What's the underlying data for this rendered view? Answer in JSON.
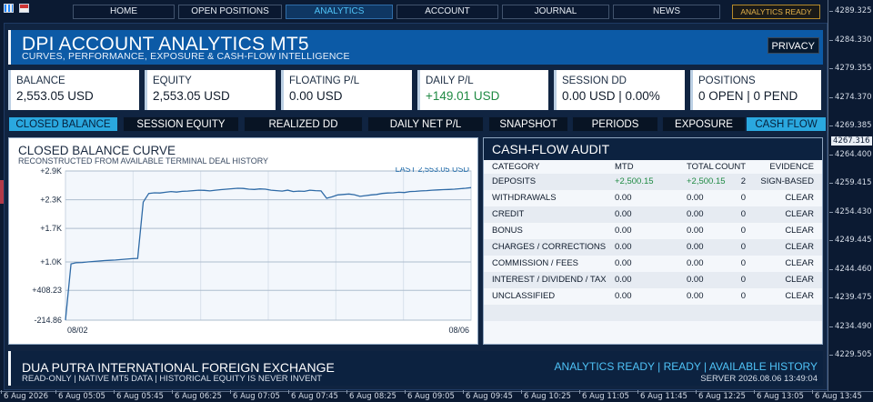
{
  "nav": {
    "items": [
      "HOME",
      "OPEN POSITIONS",
      "ANALYTICS",
      "ACCOUNT",
      "JOURNAL",
      "NEWS"
    ],
    "active": "ANALYTICS",
    "status": "ANALYTICS READY"
  },
  "header": {
    "title": "DPI ACCOUNT ANALYTICS MT5",
    "subtitle": "CURVES, PERFORMANCE, EXPOSURE & CASH-FLOW INTELLIGENCE",
    "privacy_label": "PRIVACY"
  },
  "cards": [
    {
      "label": "BALANCE",
      "value": "2,553.05 USD",
      "color": "#111c2b"
    },
    {
      "label": "EQUITY",
      "value": "2,553.05 USD",
      "color": "#111c2b"
    },
    {
      "label": "FLOATING P/L",
      "value": "0.00 USD",
      "color": "#111c2b"
    },
    {
      "label": "DAILY P/L",
      "value": "+149.01 USD",
      "color": "#1f8a43"
    },
    {
      "label": "SESSION DD",
      "value": "0.00 USD | 0.00%",
      "color": "#111c2b"
    },
    {
      "label": "POSITIONS",
      "value": "0 OPEN | 0 PEND",
      "color": "#111c2b"
    }
  ],
  "tabs": [
    "CLOSED BALANCE",
    "SESSION EQUITY",
    "REALIZED DD",
    "DAILY NET P/L",
    "SNAPSHOT",
    "PERIODS",
    "EXPOSURE",
    "CASH FLOW"
  ],
  "active_tabs": [
    "CLOSED BALANCE",
    "CASH FLOW"
  ],
  "chart_panel": {
    "title": "CLOSED BALANCE CURVE",
    "subtitle": "RECONSTRUCTED FROM AVAILABLE TERMINAL DEAL HISTORY",
    "last_label": "LAST 2,553.05 USD"
  },
  "chart_data": {
    "type": "line",
    "title": "CLOSED BALANCE CURVE",
    "y_tick_labels": [
      "+2.9K",
      "+2.3K",
      "+1.7K",
      "+1.0K",
      "+408.23",
      "-214.86"
    ],
    "y_ticks": [
      2900,
      2300,
      1700,
      1000,
      408.23,
      -214.86
    ],
    "ylim": [
      -214.86,
      2900
    ],
    "x_tick_labels": [
      "08/02",
      "08/06"
    ],
    "grid": true,
    "series": [
      {
        "values": [
          -214.86,
          960,
          985,
          990,
          1000,
          1010,
          1020,
          1030,
          1035,
          1040,
          1050,
          1060,
          1070,
          1075,
          2250,
          2430,
          2445,
          2440,
          2455,
          2470,
          2460,
          2475,
          2480,
          2490,
          2500,
          2495,
          2485,
          2500,
          2510,
          2520,
          2530,
          2540,
          2535,
          2520,
          2515,
          2525,
          2520,
          2500,
          2490,
          2480,
          2500,
          2470,
          2480,
          2475,
          2500,
          2490,
          2485,
          2330,
          2360,
          2400,
          2410,
          2420,
          2405,
          2370,
          2385,
          2400,
          2410,
          2430,
          2440,
          2445,
          2455,
          2450,
          2470,
          2475,
          2485,
          2490,
          2500,
          2505,
          2510,
          2515,
          2520,
          2530,
          2540,
          2553.05
        ],
        "color": "#2e6aa6"
      }
    ]
  },
  "audit": {
    "title": "CASH-FLOW AUDIT",
    "columns": [
      "CATEGORY",
      "MTD",
      "TOTAL",
      "COUNT",
      "EVIDENCE"
    ],
    "rows": [
      {
        "category": "DEPOSITS",
        "mtd": "+2,500.15",
        "total": "+2,500.15",
        "count": "2",
        "evidence": "SIGN-BASED",
        "positive": true
      },
      {
        "category": "WITHDRAWALS",
        "mtd": "0.00",
        "total": "0.00",
        "count": "0",
        "evidence": "CLEAR",
        "positive": false
      },
      {
        "category": "CREDIT",
        "mtd": "0.00",
        "total": "0.00",
        "count": "0",
        "evidence": "CLEAR",
        "positive": false
      },
      {
        "category": "BONUS",
        "mtd": "0.00",
        "total": "0.00",
        "count": "0",
        "evidence": "CLEAR",
        "positive": false
      },
      {
        "category": "CHARGES / CORRECTIONS",
        "mtd": "0.00",
        "total": "0.00",
        "count": "0",
        "evidence": "CLEAR",
        "positive": false
      },
      {
        "category": "COMMISSION / FEES",
        "mtd": "0.00",
        "total": "0.00",
        "count": "0",
        "evidence": "CLEAR",
        "positive": false
      },
      {
        "category": "INTEREST / DIVIDEND / TAX",
        "mtd": "0.00",
        "total": "0.00",
        "count": "0",
        "evidence": "CLEAR",
        "positive": false
      },
      {
        "category": "UNCLASSIFIED",
        "mtd": "0.00",
        "total": "0.00",
        "count": "0",
        "evidence": "CLEAR",
        "positive": false
      }
    ]
  },
  "footer": {
    "company": "DUA PUTRA INTERNATIONAL FOREIGN EXCHANGE",
    "mode": "READ-ONLY | NATIVE MT5 DATA | HISTORICAL EQUITY IS NEVER INVENT",
    "status": "ANALYTICS READY | READY | AVAILABLE HISTORY",
    "server": "SERVER 2026.08.06 13:49:04"
  },
  "price_scale": {
    "labels": [
      "4289.325",
      "4284.330",
      "4279.355",
      "4274.370",
      "4269.385",
      "4264.400",
      "4259.415",
      "4254.430",
      "4249.445",
      "4244.460",
      "4239.475",
      "4234.490",
      "4229.505"
    ],
    "current": "4267.316"
  },
  "time_scale": {
    "labels": [
      "6 Aug 2026",
      "6 Aug 05:05",
      "6 Aug 05:45",
      "6 Aug 06:25",
      "6 Aug 07:05",
      "6 Aug 07:45",
      "6 Aug 08:25",
      "6 Aug 09:05",
      "6 Aug 09:45",
      "6 Aug 10:25",
      "6 Aug 11:05",
      "6 Aug 11:45",
      "6 Aug 12:25",
      "6 Aug 13:05",
      "6 Aug 13:45"
    ]
  },
  "colors": {
    "accent": "#2aa8df",
    "header_blue": "#0c5aa6",
    "positive": "#1f8a43",
    "status_gold": "#e6b34a"
  }
}
